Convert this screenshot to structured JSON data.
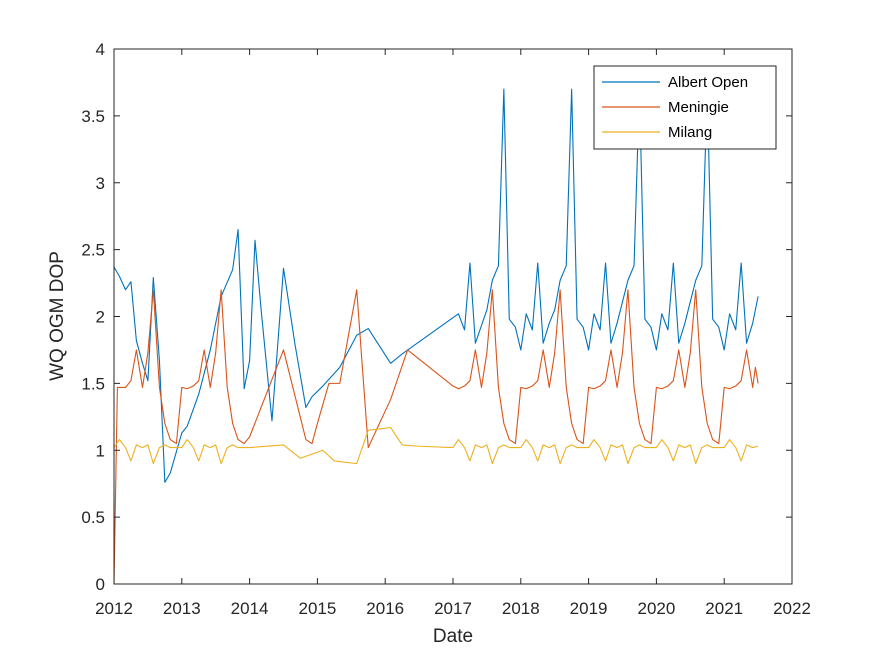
{
  "chart_data": {
    "type": "line",
    "xlabel": "Date",
    "ylabel": "WQ OGM DOP",
    "xlim": [
      2012,
      2022
    ],
    "ylim": [
      0,
      4
    ],
    "x_ticks": [
      2012,
      2013,
      2014,
      2015,
      2016,
      2017,
      2018,
      2019,
      2020,
      2021,
      2022
    ],
    "y_ticks": [
      0,
      0.5,
      1,
      1.5,
      2,
      2.5,
      3,
      3.5,
      4
    ],
    "x_tick_labels": [
      "2012",
      "2013",
      "2014",
      "2015",
      "2016",
      "2017",
      "2018",
      "2019",
      "2020",
      "2021",
      "2022"
    ],
    "y_tick_labels": [
      "0",
      "0.5",
      "1",
      "1.5",
      "2",
      "2.5",
      "3",
      "3.5",
      "4"
    ],
    "grid": false,
    "legend_position": "top-right",
    "series": [
      {
        "name": "Albert Open",
        "color": "#0072BD",
        "x": [
          2012.0,
          2012.08,
          2012.17,
          2012.25,
          2012.33,
          2012.42,
          2012.5,
          2012.58,
          2012.67,
          2012.75,
          2012.83,
          2013.0,
          2013.08,
          2013.25,
          2013.42,
          2013.58,
          2013.75,
          2013.83,
          2013.92,
          2014.0,
          2014.08,
          2014.17,
          2014.33,
          2014.5,
          2014.67,
          2014.83,
          2014.92,
          2015.08,
          2015.33,
          2015.58,
          2015.75,
          2016.08,
          2016.25,
          2017.08,
          2017.17,
          2017.25,
          2017.33,
          2017.5,
          2017.58,
          2017.67,
          2017.75,
          2017.83,
          2017.92,
          2018.0,
          2018.08,
          2018.17,
          2018.25,
          2018.33,
          2018.42,
          2018.5,
          2018.58,
          2018.67,
          2018.75,
          2018.83,
          2018.92,
          2019.0,
          2019.08,
          2019.17,
          2019.25,
          2019.33,
          2019.42,
          2019.58,
          2019.67,
          2019.75,
          2019.83,
          2019.92,
          2020.0,
          2020.08,
          2020.17,
          2020.25,
          2020.33,
          2020.42,
          2020.58,
          2020.67,
          2020.75,
          2020.83,
          2020.92,
          2021.0,
          2021.08,
          2021.17,
          2021.25,
          2021.33,
          2021.42,
          2021.5
        ],
        "y": [
          2.37,
          2.3,
          2.2,
          2.26,
          1.82,
          1.65,
          1.52,
          2.29,
          1.67,
          0.76,
          0.83,
          1.13,
          1.18,
          1.42,
          1.75,
          2.15,
          2.35,
          2.65,
          1.46,
          1.67,
          2.57,
          2.05,
          1.22,
          2.36,
          1.79,
          1.32,
          1.4,
          1.48,
          1.62,
          1.86,
          1.91,
          1.65,
          1.72,
          2.02,
          1.9,
          2.4,
          1.8,
          2.05,
          2.27,
          2.38,
          3.7,
          1.98,
          1.92,
          1.75,
          2.02,
          1.9,
          2.4,
          1.8,
          1.95,
          2.05,
          2.27,
          2.38,
          3.7,
          1.98,
          1.92,
          1.75,
          2.02,
          1.9,
          2.4,
          1.8,
          1.95,
          2.27,
          2.38,
          3.7,
          1.98,
          1.92,
          1.75,
          2.02,
          1.9,
          2.4,
          1.8,
          1.95,
          2.27,
          2.38,
          3.7,
          1.98,
          1.92,
          1.75,
          2.02,
          1.9,
          2.4,
          1.8,
          1.95,
          2.15
        ]
      },
      {
        "name": "Meningie",
        "color": "#D95319",
        "x": [
          2012.0,
          2012.05,
          2012.17,
          2012.25,
          2012.33,
          2012.42,
          2012.5,
          2012.58,
          2012.67,
          2012.75,
          2012.83,
          2012.92,
          2013.0,
          2013.08,
          2013.17,
          2013.25,
          2013.33,
          2013.42,
          2013.5,
          2013.58,
          2013.67,
          2013.75,
          2013.83,
          2013.92,
          2014.0,
          2014.5,
          2014.83,
          2014.92,
          2015.0,
          2015.17,
          2015.33,
          2015.58,
          2015.75,
          2016.08,
          2016.33,
          2017.0,
          2017.08,
          2017.17,
          2017.25,
          2017.33,
          2017.42,
          2017.5,
          2017.58,
          2017.67,
          2017.75,
          2017.83,
          2017.92,
          2018.0,
          2018.08,
          2018.17,
          2018.25,
          2018.33,
          2018.42,
          2018.5,
          2018.58,
          2018.67,
          2018.75,
          2018.83,
          2018.92,
          2019.0,
          2019.08,
          2019.17,
          2019.25,
          2019.33,
          2019.42,
          2019.5,
          2019.58,
          2019.67,
          2019.75,
          2019.83,
          2019.92,
          2020.0,
          2020.08,
          2020.17,
          2020.25,
          2020.33,
          2020.42,
          2020.5,
          2020.58,
          2020.67,
          2020.75,
          2020.83,
          2020.92,
          2021.0,
          2021.08,
          2021.17,
          2021.25,
          2021.33,
          2021.42,
          2021.46,
          2021.5
        ],
        "y": [
          0.0,
          1.47,
          1.47,
          1.52,
          1.75,
          1.47,
          1.73,
          2.2,
          1.47,
          1.2,
          1.08,
          1.05,
          1.47,
          1.46,
          1.48,
          1.52,
          1.75,
          1.47,
          1.73,
          2.2,
          1.47,
          1.2,
          1.08,
          1.05,
          1.1,
          1.75,
          1.08,
          1.05,
          1.2,
          1.5,
          1.5,
          2.2,
          1.02,
          1.38,
          1.75,
          1.48,
          1.46,
          1.48,
          1.52,
          1.75,
          1.47,
          1.73,
          2.2,
          1.47,
          1.2,
          1.08,
          1.05,
          1.47,
          1.46,
          1.48,
          1.52,
          1.75,
          1.47,
          1.73,
          2.2,
          1.47,
          1.2,
          1.08,
          1.05,
          1.47,
          1.46,
          1.48,
          1.52,
          1.75,
          1.47,
          1.73,
          2.2,
          1.47,
          1.2,
          1.08,
          1.05,
          1.47,
          1.46,
          1.48,
          1.52,
          1.75,
          1.47,
          1.73,
          2.2,
          1.47,
          1.2,
          1.08,
          1.05,
          1.47,
          1.46,
          1.48,
          1.52,
          1.75,
          1.47,
          1.62,
          1.5
        ]
      },
      {
        "name": "Milang",
        "color": "#EDB120",
        "x": [
          2012.0,
          2012.08,
          2012.17,
          2012.25,
          2012.33,
          2012.42,
          2012.5,
          2012.58,
          2012.67,
          2012.75,
          2012.83,
          2012.92,
          2013.0,
          2013.08,
          2013.17,
          2013.25,
          2013.33,
          2013.42,
          2013.5,
          2013.58,
          2013.67,
          2013.75,
          2013.83,
          2013.92,
          2014.0,
          2014.5,
          2014.75,
          2015.08,
          2015.25,
          2015.58,
          2015.75,
          2016.08,
          2016.25,
          2016.5,
          2017.0,
          2017.08,
          2017.17,
          2017.25,
          2017.33,
          2017.42,
          2017.5,
          2017.58,
          2017.67,
          2017.75,
          2017.83,
          2017.92,
          2018.0,
          2018.08,
          2018.17,
          2018.25,
          2018.33,
          2018.42,
          2018.5,
          2018.58,
          2018.67,
          2018.75,
          2018.83,
          2018.92,
          2019.0,
          2019.08,
          2019.17,
          2019.25,
          2019.33,
          2019.42,
          2019.5,
          2019.58,
          2019.67,
          2019.75,
          2019.83,
          2019.92,
          2020.0,
          2020.08,
          2020.17,
          2020.25,
          2020.33,
          2020.42,
          2020.5,
          2020.58,
          2020.67,
          2020.75,
          2020.83,
          2020.92,
          2021.0,
          2021.08,
          2021.17,
          2021.25,
          2021.33,
          2021.42,
          2021.5
        ],
        "y": [
          1.02,
          1.08,
          1.02,
          0.92,
          1.04,
          1.02,
          1.04,
          0.9,
          1.02,
          1.04,
          1.02,
          1.02,
          1.02,
          1.08,
          1.02,
          0.92,
          1.04,
          1.02,
          1.04,
          0.9,
          1.02,
          1.04,
          1.02,
          1.02,
          1.02,
          1.04,
          0.94,
          1.0,
          0.92,
          0.9,
          1.15,
          1.17,
          1.04,
          1.03,
          1.02,
          1.08,
          1.02,
          0.92,
          1.04,
          1.02,
          1.04,
          0.9,
          1.02,
          1.04,
          1.02,
          1.02,
          1.02,
          1.08,
          1.02,
          0.92,
          1.04,
          1.02,
          1.04,
          0.9,
          1.02,
          1.04,
          1.02,
          1.02,
          1.02,
          1.08,
          1.02,
          0.92,
          1.04,
          1.02,
          1.04,
          0.9,
          1.02,
          1.04,
          1.02,
          1.02,
          1.02,
          1.08,
          1.02,
          0.92,
          1.04,
          1.02,
          1.04,
          0.9,
          1.02,
          1.04,
          1.02,
          1.02,
          1.02,
          1.08,
          1.02,
          0.92,
          1.04,
          1.02,
          1.03
        ]
      }
    ]
  }
}
